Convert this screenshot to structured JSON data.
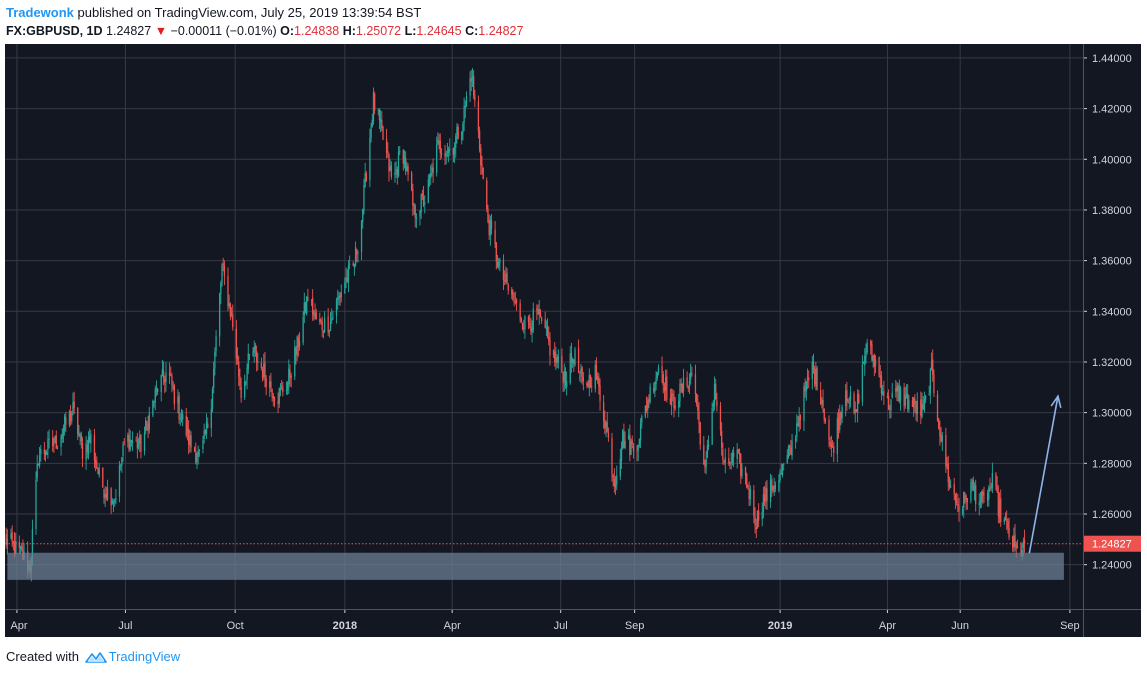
{
  "header": {
    "author": "Tradewonk",
    "published_text": "published on TradingView.com, July 25, 2019 13:39:54 BST",
    "symbol": "FX:GBPUSD, 1D",
    "last": "1.24827",
    "change": "−0.00011 (−0.01%)",
    "open_label": "O:",
    "open": "1.24838",
    "high_label": "H:",
    "high": "1.25072",
    "low_label": "L:",
    "low": "1.24645",
    "close_label": "C:",
    "close": "1.24827"
  },
  "footer": {
    "created_with": "Created with",
    "brand": "TradingView"
  },
  "chart_data": {
    "type": "candlestick",
    "symbol": "FX:GBPUSD",
    "timeframe": "1D",
    "x_tick_labels": [
      "Apr",
      "Jul",
      "Oct",
      "2018",
      "Apr",
      "Jul",
      "Sep",
      "2019",
      "Apr",
      "Jun",
      "Sep"
    ],
    "x_tick_dates": [
      "2017-04-01",
      "2017-07-01",
      "2017-10-01",
      "2018-01-01",
      "2018-04-01",
      "2018-07-01",
      "2018-09-01",
      "2019-01-01",
      "2019-04-01",
      "2019-06-01",
      "2019-09-01"
    ],
    "x_bold_labels": [
      "2018",
      "2019"
    ],
    "xlim": [
      "2017-03-22",
      "2019-09-12"
    ],
    "y_tick_labels": [
      "1.24000",
      "1.26000",
      "1.28000",
      "1.30000",
      "1.32000",
      "1.34000",
      "1.36000",
      "1.38000",
      "1.40000",
      "1.42000",
      "1.44000"
    ],
    "ylim": [
      1.2225,
      1.4455
    ],
    "last_price": 1.24827,
    "last_price_label": "1.24827",
    "price_path": [
      [
        "2017-03-22",
        1.25
      ],
      [
        "2017-04-05",
        1.244
      ],
      [
        "2017-04-12",
        1.239
      ],
      [
        "2017-04-19",
        1.283
      ],
      [
        "2017-05-05",
        1.289
      ],
      [
        "2017-05-18",
        1.301
      ],
      [
        "2017-05-26",
        1.285
      ],
      [
        "2017-06-02",
        1.29
      ],
      [
        "2017-06-10",
        1.272
      ],
      [
        "2017-06-22",
        1.266
      ],
      [
        "2017-07-01",
        1.29
      ],
      [
        "2017-07-14",
        1.287
      ],
      [
        "2017-07-28",
        1.31
      ],
      [
        "2017-08-05",
        1.316
      ],
      [
        "2017-08-15",
        1.301
      ],
      [
        "2017-08-25",
        1.287
      ],
      [
        "2017-09-02",
        1.282
      ],
      [
        "2017-09-10",
        1.3
      ],
      [
        "2017-09-20",
        1.357
      ],
      [
        "2017-09-28",
        1.338
      ],
      [
        "2017-10-06",
        1.308
      ],
      [
        "2017-10-15",
        1.325
      ],
      [
        "2017-10-25",
        1.316
      ],
      [
        "2017-11-05",
        1.306
      ],
      [
        "2017-11-14",
        1.312
      ],
      [
        "2017-11-22",
        1.326
      ],
      [
        "2017-12-01",
        1.346
      ],
      [
        "2017-12-10",
        1.334
      ],
      [
        "2017-12-20",
        1.336
      ],
      [
        "2018-01-01",
        1.352
      ],
      [
        "2018-01-08",
        1.357
      ],
      [
        "2018-01-14",
        1.372
      ],
      [
        "2018-01-25",
        1.423
      ],
      [
        "2018-02-02",
        1.408
      ],
      [
        "2018-02-10",
        1.39
      ],
      [
        "2018-02-18",
        1.405
      ],
      [
        "2018-02-28",
        1.379
      ],
      [
        "2018-03-10",
        1.385
      ],
      [
        "2018-03-20",
        1.405
      ],
      [
        "2018-04-01",
        1.404
      ],
      [
        "2018-04-10",
        1.416
      ],
      [
        "2018-04-17",
        1.434
      ],
      [
        "2018-04-23",
        1.41
      ],
      [
        "2018-04-30",
        1.378
      ],
      [
        "2018-05-10",
        1.358
      ],
      [
        "2018-05-20",
        1.346
      ],
      [
        "2018-06-01",
        1.335
      ],
      [
        "2018-06-12",
        1.338
      ],
      [
        "2018-06-25",
        1.322
      ],
      [
        "2018-07-05",
        1.314
      ],
      [
        "2018-07-12",
        1.323
      ],
      [
        "2018-07-20",
        1.31
      ],
      [
        "2018-07-30",
        1.316
      ],
      [
        "2018-08-08",
        1.295
      ],
      [
        "2018-08-15",
        1.273
      ],
      [
        "2018-08-22",
        1.29
      ],
      [
        "2018-09-01",
        1.285
      ],
      [
        "2018-09-12",
        1.305
      ],
      [
        "2018-09-22",
        1.32
      ],
      [
        "2018-10-01",
        1.303
      ],
      [
        "2018-10-08",
        1.307
      ],
      [
        "2018-10-20",
        1.316
      ],
      [
        "2018-10-30",
        1.275
      ],
      [
        "2018-11-07",
        1.311
      ],
      [
        "2018-11-15",
        1.278
      ],
      [
        "2018-11-25",
        1.283
      ],
      [
        "2018-12-05",
        1.271
      ],
      [
        "2018-12-12",
        1.257
      ],
      [
        "2018-12-17",
        1.265
      ],
      [
        "2019-01-01",
        1.275
      ],
      [
        "2019-01-10",
        1.285
      ],
      [
        "2019-01-20",
        1.305
      ],
      [
        "2019-01-28",
        1.318
      ],
      [
        "2019-02-05",
        1.306
      ],
      [
        "2019-02-13",
        1.284
      ],
      [
        "2019-02-25",
        1.31
      ],
      [
        "2019-03-05",
        1.298
      ],
      [
        "2019-03-14",
        1.326
      ],
      [
        "2019-03-22",
        1.32
      ],
      [
        "2019-04-01",
        1.303
      ],
      [
        "2019-04-10",
        1.308
      ],
      [
        "2019-04-22",
        1.303
      ],
      [
        "2019-05-01",
        1.3
      ],
      [
        "2019-05-08",
        1.316
      ],
      [
        "2019-05-16",
        1.29
      ],
      [
        "2019-05-24",
        1.27
      ],
      [
        "2019-06-01",
        1.262
      ],
      [
        "2019-06-10",
        1.271
      ],
      [
        "2019-06-20",
        1.264
      ],
      [
        "2019-06-28",
        1.272
      ],
      [
        "2019-07-05",
        1.26
      ],
      [
        "2019-07-12",
        1.252
      ],
      [
        "2019-07-18",
        1.245
      ],
      [
        "2019-07-25",
        1.248
      ]
    ],
    "support_zone": {
      "date_start": "2017-03-24",
      "date_end": "2019-08-27",
      "price_low": 1.234,
      "price_high": 1.2447
    },
    "arrow": {
      "from": [
        "2019-07-29",
        1.2445
      ],
      "to": [
        "2019-08-22",
        1.3065
      ]
    },
    "colors": {
      "background": "#131722",
      "grid": "#363a45",
      "up": "#26a69a",
      "down": "#ef5350",
      "axis_text": "#d1d4dc",
      "support_zone": "#6e8196",
      "arrow": "#8fb4e8",
      "last_price_line": "#ef5350"
    }
  }
}
